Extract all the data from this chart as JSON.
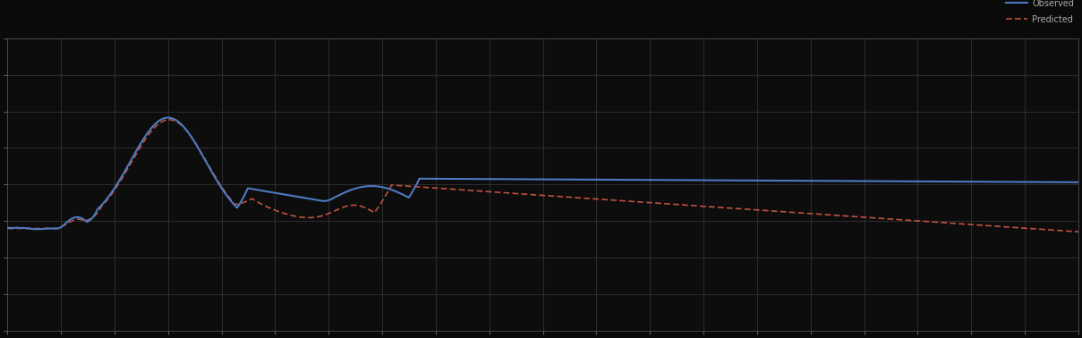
{
  "background_color": "#0a0a0a",
  "axes_bg_color": "#0d0d0d",
  "grid_color": "#3a3a3a",
  "line1_color": "#4d7abf",
  "line2_color": "#c05040",
  "line1_label": "Observed",
  "line2_label": "Predicted",
  "title": "",
  "xlabel": "",
  "ylabel": "",
  "figsize": [
    12.09,
    3.78
  ],
  "dpi": 100,
  "xlim": [
    0,
    100
  ],
  "ylim": [
    0,
    10
  ],
  "n_gridlines_x": 20,
  "n_gridlines_y": 8
}
